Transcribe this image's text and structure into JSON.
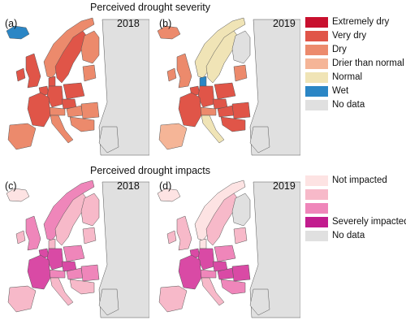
{
  "severity_section": {
    "title": "Perceived drought severity",
    "panels": [
      {
        "label": "(a)",
        "year": "2018"
      },
      {
        "label": "(b)",
        "year": "2019"
      }
    ],
    "legend": [
      {
        "label": "Extremely dry",
        "color": "#c8102e"
      },
      {
        "label": "Very dry",
        "color": "#e05548"
      },
      {
        "label": "Dry",
        "color": "#ec8a6c"
      },
      {
        "label": "Drier than normal",
        "color": "#f5b597"
      },
      {
        "label": "Normal",
        "color": "#f0e4b6"
      },
      {
        "label": "Wet",
        "color": "#2b86c5"
      },
      {
        "label": "No data",
        "color": "#e0e0e0"
      }
    ]
  },
  "impacts_section": {
    "title": "Perceived drought impacts",
    "panels": [
      {
        "label": "(c)",
        "year": "2018"
      },
      {
        "label": "(d)",
        "year": "2019"
      }
    ],
    "legend": [
      {
        "label": "Not impacted",
        "color": "#fde3e3"
      },
      {
        "label": "",
        "color": "#f7b9c9"
      },
      {
        "label": "",
        "color": "#ef86ba"
      },
      {
        "label": "Severely impacted",
        "color": "#c21c8e"
      },
      {
        "label": "No data",
        "color": "#e0e0e0"
      }
    ]
  },
  "map_colors": {
    "no_data": "#e0e0e0",
    "border": "#555555",
    "coast": "#1a1a1a"
  },
  "panel_a": {
    "iceland": "#2b86c5",
    "ireland": "#e05548",
    "uk": "#e05548",
    "norway": "#ec8a6c",
    "sweden": "#e05548",
    "finland": "#ec8a6c",
    "baltics": "#ec8a6c",
    "denmark": "#e05548",
    "france": "#e05548",
    "iberia": "#ec8a6c",
    "benelux": "#e05548",
    "germany": "#e05548",
    "poland": "#e05548",
    "czech": "#e05548",
    "alps": "#ec8a6c",
    "hungary": "#ec8a6c",
    "italy": "#ec8a6c",
    "balkans": "#ec8a6c",
    "romania": "#ec8a6c",
    "greece": "#e0e0e0",
    "east": "#e0e0e0"
  },
  "panel_b": {
    "iceland": "#ec8a6c",
    "ireland": "#ec8a6c",
    "uk": "#ec8a6c",
    "norway": "#f0e4b6",
    "sweden": "#f0e4b6",
    "finland": "#e0e0e0",
    "baltics": "#ec8a6c",
    "denmark": "#2b86c5",
    "france": "#e05548",
    "iberia": "#f5b597",
    "benelux": "#e05548",
    "germany": "#e05548",
    "poland": "#e05548",
    "czech": "#e05548",
    "alps": "#ec8a6c",
    "hungary": "#e05548",
    "italy": "#f0e4b6",
    "balkans": "#e05548",
    "romania": "#e05548",
    "greece": "#e0e0e0",
    "east": "#e0e0e0"
  },
  "panel_c": {
    "iceland": "#fde3e3",
    "ireland": "#f7b9c9",
    "uk": "#ef86ba",
    "norway": "#ef86ba",
    "sweden": "#f7b9c9",
    "finland": "#f7b9c9",
    "baltics": "#f7b9c9",
    "denmark": "#f7b9c9",
    "france": "#d94aa5",
    "iberia": "#f7b9c9",
    "benelux": "#d94aa5",
    "germany": "#d94aa5",
    "poland": "#ef86ba",
    "czech": "#d94aa5",
    "alps": "#ef86ba",
    "hungary": "#ef86ba",
    "italy": "#f7b9c9",
    "balkans": "#f7b9c9",
    "romania": "#ef86ba",
    "greece": "#e0e0e0",
    "east": "#e0e0e0"
  },
  "panel_d": {
    "iceland": "#fde3e3",
    "ireland": "#f7b9c9",
    "uk": "#f7b9c9",
    "norway": "#fde3e3",
    "sweden": "#f7b9c9",
    "finland": "#e0e0e0",
    "baltics": "#f7b9c9",
    "denmark": "#fde3e3",
    "france": "#d94aa5",
    "iberia": "#f7b9c9",
    "benelux": "#d94aa5",
    "germany": "#d94aa5",
    "poland": "#ef86ba",
    "czech": "#d94aa5",
    "alps": "#ef86ba",
    "hungary": "#d94aa5",
    "italy": "#f7b9c9",
    "balkans": "#ef86ba",
    "romania": "#d94aa5",
    "greece": "#e0e0e0",
    "east": "#e0e0e0"
  }
}
